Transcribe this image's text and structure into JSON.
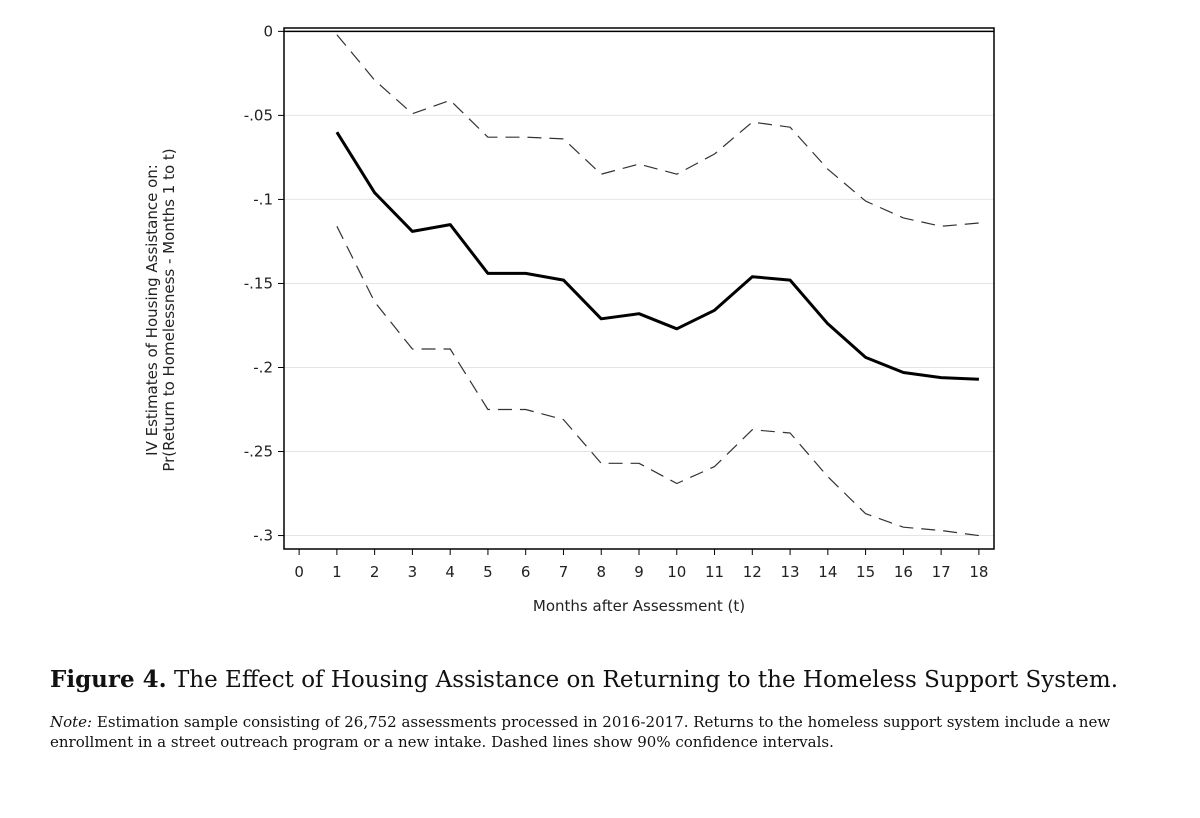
{
  "figure": {
    "label": "Figure 4.",
    "caption": "The Effect of Housing Assistance on Returning to the Homeless Support System.",
    "note_label": "Note:",
    "note_text": "Estimation sample consisting of 26,752 assessments processed in 2016-2017. Returns to the homeless support system include a new enrollment in a street outreach program or a new intake. Dashed lines show 90% confidence intervals."
  },
  "chart_data": {
    "type": "line",
    "title": "",
    "xlabel": "Months after Assessment (t)",
    "ylabel_lines": [
      "IV Estimates of Housing Assistance on:",
      "Pr(Return to Homelessness - Months 1 to t)"
    ],
    "xlim": [
      -0.4,
      18.4
    ],
    "ylim": [
      -0.308,
      0.002
    ],
    "x_ticks": [
      0,
      1,
      2,
      3,
      4,
      5,
      6,
      7,
      8,
      9,
      10,
      11,
      12,
      13,
      14,
      15,
      16,
      17,
      18
    ],
    "y_ticks": [
      0,
      -0.05,
      -0.1,
      -0.15,
      -0.2,
      -0.25,
      -0.3
    ],
    "y_tick_labels": [
      "0",
      "-.05",
      "-.1",
      "-.15",
      "-.2",
      "-.25",
      "-.3"
    ],
    "grid": "horizontal",
    "reference_line": 0,
    "x": [
      1,
      2,
      3,
      4,
      5,
      6,
      7,
      8,
      9,
      10,
      11,
      12,
      13,
      14,
      15,
      16,
      17,
      18
    ],
    "series": [
      {
        "role": "estimate",
        "style": "solid",
        "color": "#000000",
        "values": [
          -0.06,
          -0.096,
          -0.119,
          -0.115,
          -0.144,
          -0.144,
          -0.148,
          -0.171,
          -0.168,
          -0.177,
          -0.166,
          -0.146,
          -0.148,
          -0.174,
          -0.194,
          -0.203,
          -0.206,
          -0.207
        ]
      },
      {
        "role": "upper",
        "style": "dashed",
        "color": "#333333",
        "values": [
          -0.002,
          -0.029,
          -0.049,
          -0.041,
          -0.063,
          -0.063,
          -0.064,
          -0.085,
          -0.079,
          -0.085,
          -0.073,
          -0.054,
          -0.057,
          -0.082,
          -0.101,
          -0.111,
          -0.116,
          -0.114
        ]
      },
      {
        "role": "lower",
        "style": "dashed",
        "color": "#333333",
        "values": [
          -0.116,
          -0.161,
          -0.189,
          -0.189,
          -0.225,
          -0.225,
          -0.231,
          -0.257,
          -0.257,
          -0.269,
          -0.259,
          -0.237,
          -0.239,
          -0.265,
          -0.287,
          -0.295,
          -0.297,
          -0.3
        ]
      }
    ]
  }
}
